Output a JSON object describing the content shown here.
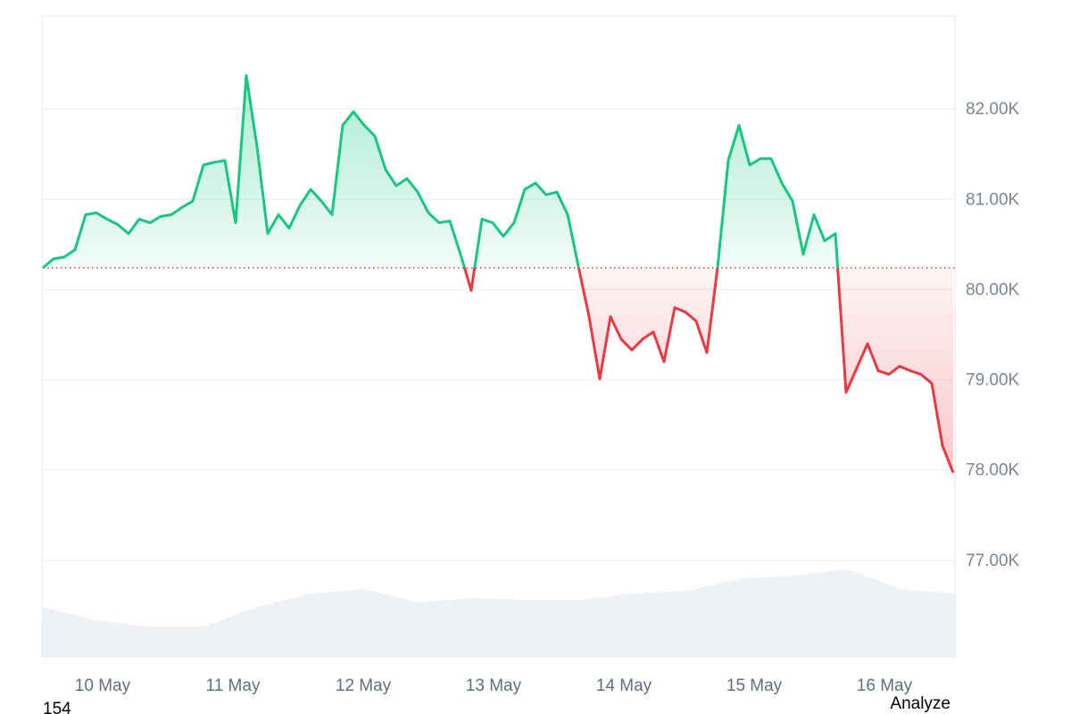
{
  "chart_data": {
    "type": "baseline-area",
    "values": [
      80240,
      80340,
      80360,
      80440,
      80830,
      80850,
      80780,
      80720,
      80620,
      80780,
      80740,
      80810,
      80830,
      80910,
      80980,
      81380,
      81410,
      81430,
      80740,
      82370,
      81580,
      80620,
      80830,
      80680,
      80930,
      81110,
      80980,
      80830,
      81820,
      81970,
      81820,
      81700,
      81330,
      81150,
      81230,
      81080,
      80850,
      80740,
      80760,
      80390,
      79990,
      80780,
      80740,
      80590,
      80740,
      81110,
      81180,
      81050,
      81080,
      80830,
      80260,
      79700,
      79010,
      79700,
      79450,
      79330,
      79450,
      79530,
      79200,
      79800,
      79750,
      79650,
      79300,
      80240,
      81430,
      81820,
      81380,
      81450,
      81450,
      81180,
      80980,
      80390,
      80830,
      80540,
      80620,
      78860,
      79130,
      79400,
      79100,
      79060,
      79150,
      79100,
      79060,
      78960,
      78270,
      77970
    ],
    "baseline": 80240,
    "up_color": "#16c784",
    "down_color": "#ea3943",
    "ylim": [
      75920,
      83030
    ],
    "yticks": [
      {
        "value": 82000,
        "label": "82.00K"
      },
      {
        "value": 81000,
        "label": "81.00K"
      },
      {
        "value": 80000,
        "label": "80.00K"
      },
      {
        "value": 79000,
        "label": "79.00K"
      },
      {
        "value": 78000,
        "label": "78.00K"
      },
      {
        "value": 77000,
        "label": "77.00K"
      }
    ],
    "xticks": [
      {
        "value": 5.58,
        "label": "10 May"
      },
      {
        "value": 17.75,
        "label": "11 May"
      },
      {
        "value": 29.92,
        "label": "12 May"
      },
      {
        "value": 42.08,
        "label": "13 May"
      },
      {
        "value": 54.25,
        "label": "14 May"
      },
      {
        "value": 66.42,
        "label": "15 May"
      },
      {
        "value": 78.58,
        "label": "16 May"
      }
    ],
    "grid": true,
    "volume": {
      "values": [
        57,
        42,
        35,
        35,
        57,
        72,
        77,
        62,
        67,
        65,
        65,
        72,
        75,
        89,
        92,
        99,
        77,
        72
      ],
      "ylim": [
        0,
        150
      ],
      "color": "#eef1f5"
    }
  },
  "overlay": {
    "corner_text": "154",
    "button": "Analyze"
  }
}
